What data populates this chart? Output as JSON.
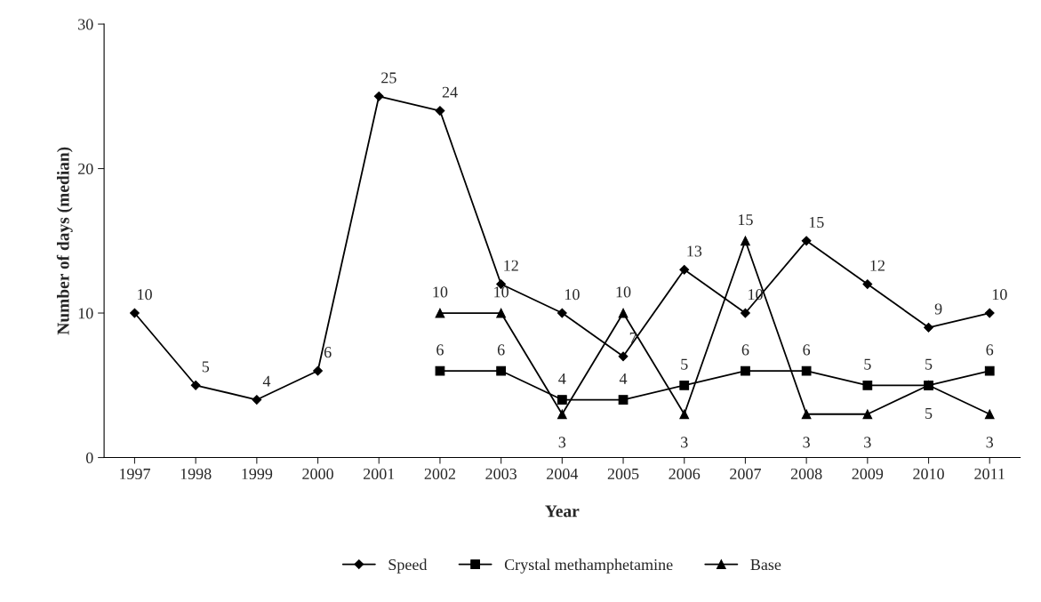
{
  "chart_data": {
    "type": "line",
    "xlabel": "Year",
    "ylabel": "Number of days (median)",
    "categories": [
      "1997",
      "1998",
      "1999",
      "2000",
      "2001",
      "2002",
      "2003",
      "2004",
      "2005",
      "2006",
      "2007",
      "2008",
      "2009",
      "2010",
      "2011"
    ],
    "series": [
      {
        "name": "Speed",
        "color": "#000000",
        "marker": "diamond",
        "values": [
          10,
          5,
          4,
          6,
          25,
          24,
          12,
          10,
          7,
          13,
          10,
          15,
          12,
          9,
          10
        ]
      },
      {
        "name": "Crystal methamphetamine",
        "color": "#000000",
        "marker": "square",
        "values": [
          null,
          null,
          null,
          null,
          null,
          6,
          6,
          4,
          4,
          5,
          6,
          6,
          5,
          5,
          6
        ]
      },
      {
        "name": "Base",
        "color": "#000000",
        "marker": "triangle",
        "values": [
          null,
          null,
          null,
          null,
          null,
          10,
          10,
          3,
          10,
          3,
          15,
          3,
          3,
          5,
          3
        ]
      }
    ],
    "ylim": [
      0,
      30
    ],
    "yticks": [
      0,
      10,
      20,
      30
    ],
    "grid": false,
    "legend": "bottom",
    "data_labels": true,
    "line_style": "solid"
  }
}
